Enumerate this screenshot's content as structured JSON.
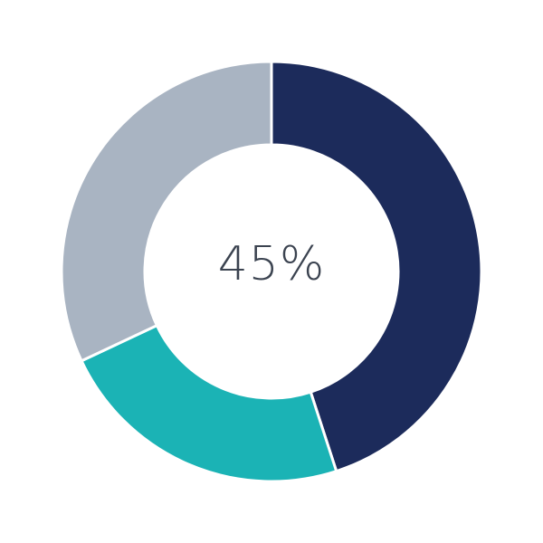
{
  "chart_data": {
    "type": "pie",
    "variant": "donut",
    "center_label": "45%",
    "slices": [
      {
        "value": 45,
        "color": "#1c2b5b"
      },
      {
        "value": 23,
        "color": "#1bb3b5"
      },
      {
        "value": 32,
        "color": "#a9b4c2"
      }
    ],
    "start": "top",
    "direction": "clockwise"
  }
}
